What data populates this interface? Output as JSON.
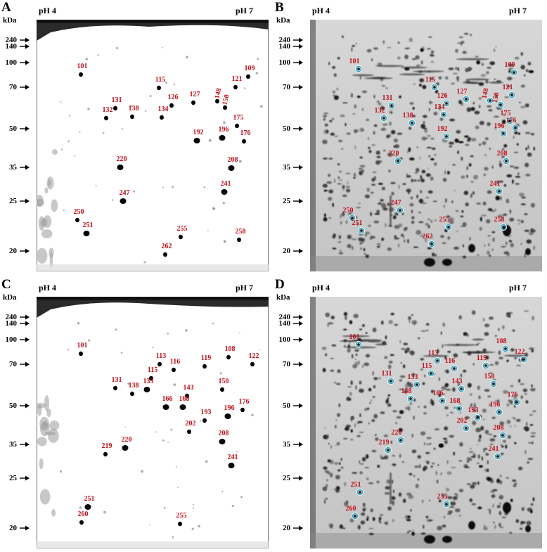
{
  "molecular_weight_markers": [
    "240",
    "140",
    "100",
    "70",
    "50",
    "35",
    "25",
    "20"
  ],
  "kda_label": "kDa",
  "ph_left": "pH 4",
  "ph_right": "pH 7",
  "panels": [
    {
      "letter": "A",
      "style": "binary",
      "spots": [
        {
          "id": "101"
        },
        {
          "id": "109"
        },
        {
          "id": "115"
        },
        {
          "id": "121"
        },
        {
          "id": "126"
        },
        {
          "id": "127"
        },
        {
          "id": "131"
        },
        {
          "id": "132"
        },
        {
          "id": "134"
        },
        {
          "id": "138"
        },
        {
          "id": "148"
        },
        {
          "id": "150"
        },
        {
          "id": "175"
        },
        {
          "id": "176"
        },
        {
          "id": "192"
        },
        {
          "id": "196"
        },
        {
          "id": "208"
        },
        {
          "id": "220"
        },
        {
          "id": "241"
        },
        {
          "id": "247"
        },
        {
          "id": "250"
        },
        {
          "id": "251"
        },
        {
          "id": "255"
        },
        {
          "id": "258"
        },
        {
          "id": "262"
        }
      ]
    },
    {
      "letter": "B",
      "style": "grayscale",
      "spots": [
        {
          "id": "101"
        },
        {
          "id": "109"
        },
        {
          "id": "115"
        },
        {
          "id": "121"
        },
        {
          "id": "126"
        },
        {
          "id": "127"
        },
        {
          "id": "131"
        },
        {
          "id": "132"
        },
        {
          "id": "134"
        },
        {
          "id": "138"
        },
        {
          "id": "148"
        },
        {
          "id": "150"
        },
        {
          "id": "175"
        },
        {
          "id": "176"
        },
        {
          "id": "192"
        },
        {
          "id": "196"
        },
        {
          "id": "208"
        },
        {
          "id": "220"
        },
        {
          "id": "241"
        },
        {
          "id": "247"
        },
        {
          "id": "250"
        },
        {
          "id": "251"
        },
        {
          "id": "255"
        },
        {
          "id": "258"
        },
        {
          "id": "262"
        }
      ]
    },
    {
      "letter": "C",
      "style": "binary",
      "spots": [
        {
          "id": "101"
        },
        {
          "id": "108"
        },
        {
          "id": "113"
        },
        {
          "id": "115"
        },
        {
          "id": "116"
        },
        {
          "id": "119"
        },
        {
          "id": "122"
        },
        {
          "id": "131"
        },
        {
          "id": "133"
        },
        {
          "id": "138"
        },
        {
          "id": "143"
        },
        {
          "id": "150"
        },
        {
          "id": "166"
        },
        {
          "id": "168"
        },
        {
          "id": "176"
        },
        {
          "id": "193"
        },
        {
          "id": "196"
        },
        {
          "id": "202"
        },
        {
          "id": "208"
        },
        {
          "id": "219"
        },
        {
          "id": "220"
        },
        {
          "id": "241"
        },
        {
          "id": "251"
        },
        {
          "id": "255"
        },
        {
          "id": "260"
        }
      ]
    },
    {
      "letter": "D",
      "style": "grayscale",
      "spots": [
        {
          "id": "101"
        },
        {
          "id": "108"
        },
        {
          "id": "113"
        },
        {
          "id": "115"
        },
        {
          "id": "116"
        },
        {
          "id": "119"
        },
        {
          "id": "122"
        },
        {
          "id": "131"
        },
        {
          "id": "133"
        },
        {
          "id": "138"
        },
        {
          "id": "143"
        },
        {
          "id": "150"
        },
        {
          "id": "166"
        },
        {
          "id": "168"
        },
        {
          "id": "176"
        },
        {
          "id": "193"
        },
        {
          "id": "196"
        },
        {
          "id": "202"
        },
        {
          "id": "208"
        },
        {
          "id": "219"
        },
        {
          "id": "220"
        },
        {
          "id": "241"
        },
        {
          "id": "251"
        },
        {
          "id": "255"
        },
        {
          "id": "260"
        }
      ]
    }
  ]
}
